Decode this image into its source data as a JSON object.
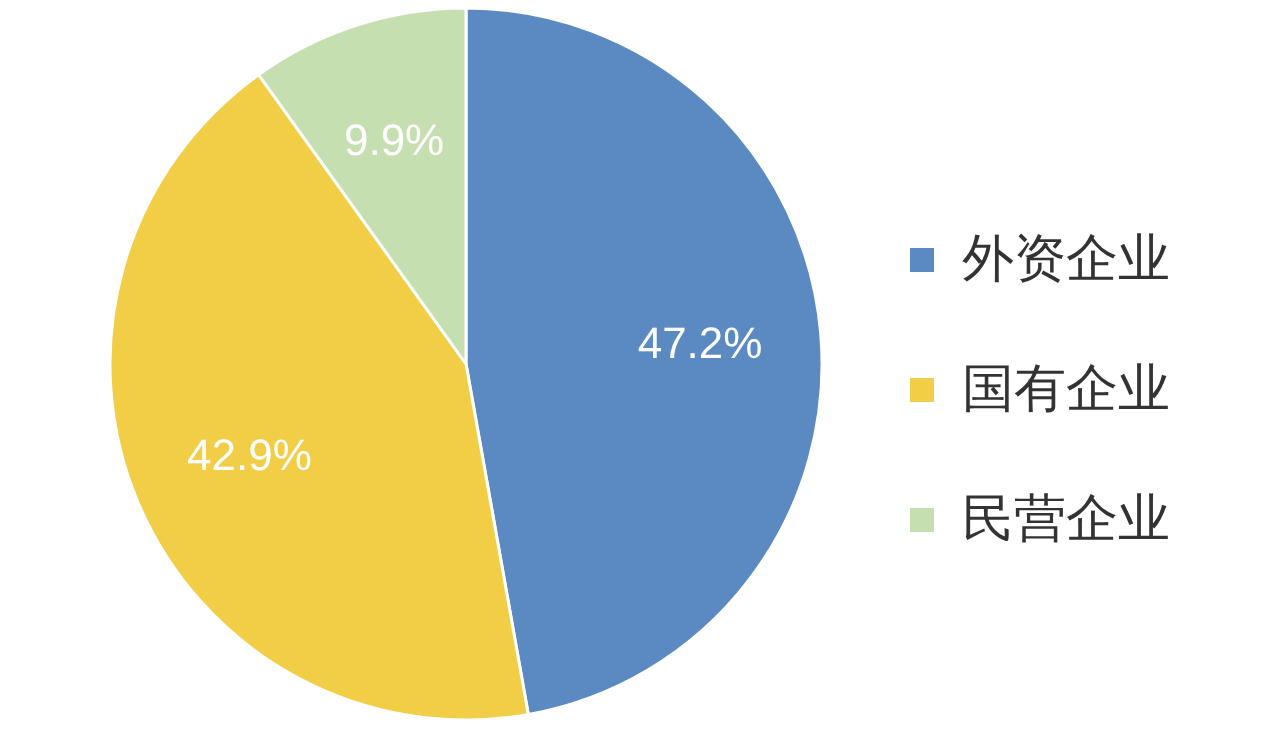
{
  "chart_data": {
    "type": "pie",
    "categories": [
      "外资企业",
      "国有企业",
      "民营企业"
    ],
    "values": [
      47.2,
      42.9,
      9.9
    ],
    "colors": [
      "#5b8ac2",
      "#f2cd46",
      "#c6dfb1"
    ],
    "value_labels": [
      "47.2%",
      "42.9%",
      "9.9%"
    ],
    "legend": "right"
  }
}
